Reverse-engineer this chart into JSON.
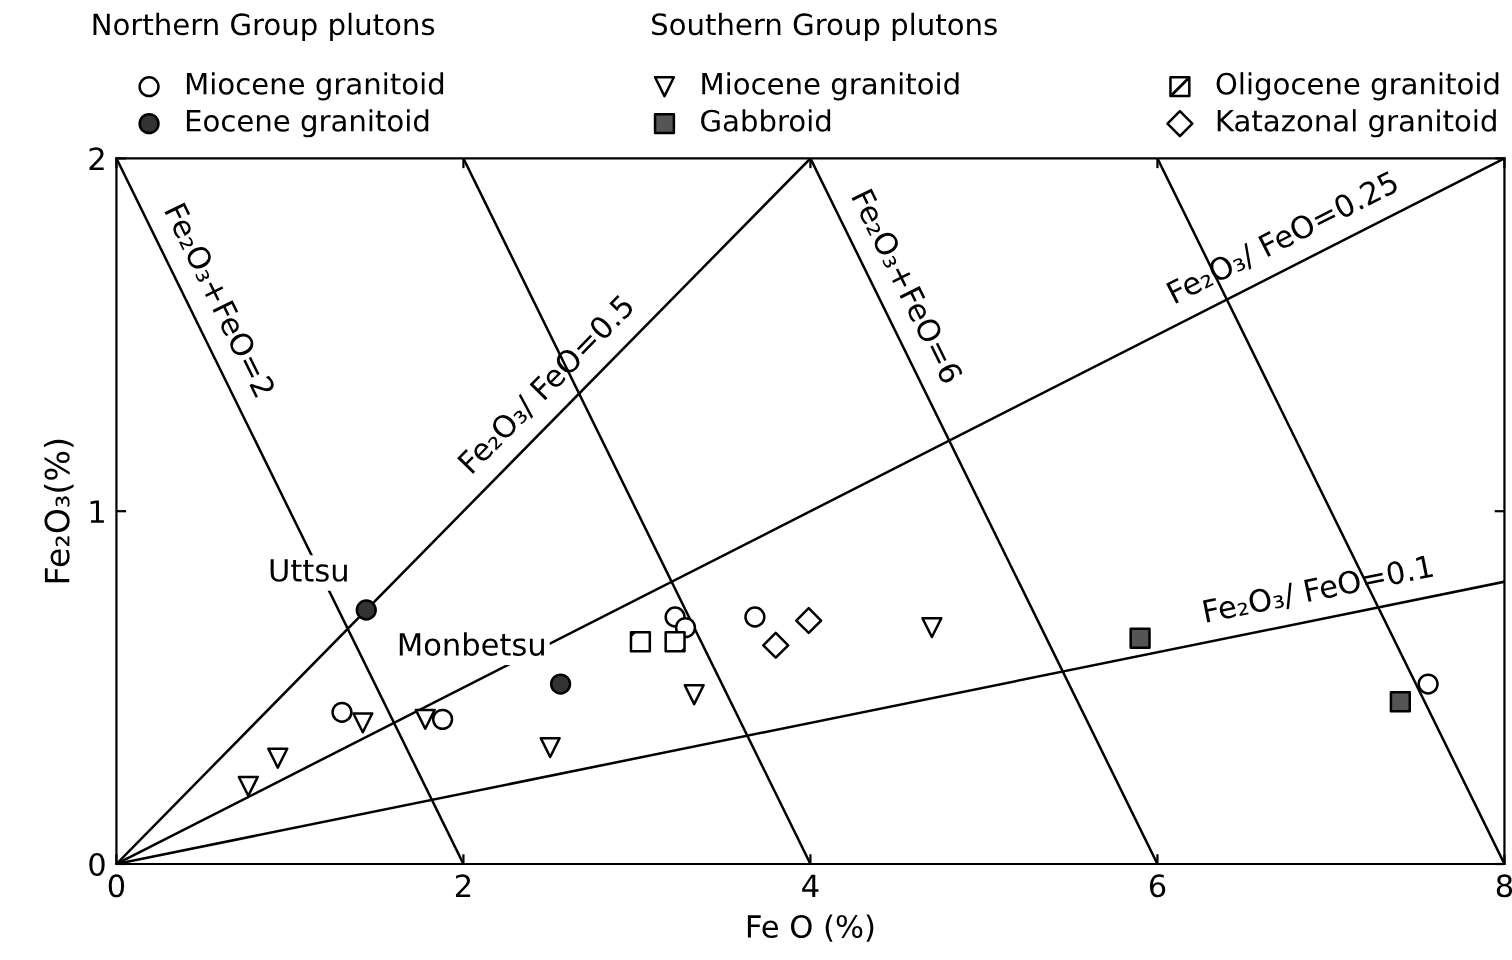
{
  "chart_data": {
    "type": "scatter",
    "xlabel": "Fe O (%)",
    "ylabel": "Fe₂O₃(%)",
    "xlim": [
      0,
      8
    ],
    "ylim": [
      0,
      2
    ],
    "xticks": [
      0,
      2,
      4,
      6,
      8
    ],
    "yticks": [
      0,
      1,
      2
    ],
    "grid": false,
    "legend": "top",
    "annotations": [
      "Northern Group plutons",
      "Southern Group plutons",
      {
        "text": "Uttsu",
        "x": 1.44,
        "y": 0.72
      },
      {
        "text": "Monbetsu",
        "x": 2.56,
        "y": 0.51
      }
    ],
    "series": [
      {
        "name": "Miocene granitoid",
        "color": "#000000",
        "marker": "circle",
        "x": [
          1.3,
          1.88,
          3.22,
          3.28,
          3.68,
          7.56
        ],
        "values": [
          0.43,
          0.41,
          0.7,
          0.67,
          0.7,
          0.51
        ]
      },
      {
        "name": "Eocene granitoid",
        "color": "#333333",
        "marker": "circle",
        "x": [
          1.44,
          2.56
        ],
        "values": [
          0.72,
          0.51
        ]
      },
      {
        "name": "Miocene granitoid",
        "color": "#000000",
        "marker": "triangle",
        "x": [
          0.76,
          0.93,
          1.42,
          1.78,
          2.5,
          3.33,
          4.7
        ],
        "values": [
          0.22,
          0.3,
          0.4,
          0.41,
          0.33,
          0.48,
          0.67
        ]
      },
      {
        "name": "Gabbroid",
        "color": "#555555",
        "marker": "square",
        "x": [
          5.9,
          7.4
        ],
        "values": [
          0.64,
          0.46
        ]
      },
      {
        "name": "Oligocene granitoid",
        "color": "#000000",
        "marker": "square",
        "x": [
          3.02,
          3.22
        ],
        "values": [
          0.63,
          0.63
        ]
      },
      {
        "name": "Katazonal granitoid",
        "color": "#000000",
        "marker": "diamond",
        "x": [
          3.8,
          3.99
        ],
        "values": [
          0.62,
          0.69
        ]
      },
      {
        "type": "line",
        "name": "Fe₂O₃/ FeO=0.5",
        "color": "#000000",
        "x": [
          0,
          4
        ],
        "values": [
          0,
          2
        ]
      },
      {
        "type": "line",
        "name": "Fe₂O₃/ FeO=0.25",
        "color": "#000000",
        "x": [
          0,
          8
        ],
        "values": [
          0,
          2
        ]
      },
      {
        "type": "line",
        "name": "Fe₂O₃/ FeO=0.1",
        "color": "#000000",
        "x": [
          0,
          8
        ],
        "values": [
          0,
          0.8
        ]
      },
      {
        "type": "line",
        "name": "Fe₂O₃+FeO=2",
        "color": "#000000",
        "x": [
          0,
          2
        ],
        "values": [
          2,
          0
        ]
      },
      {
        "type": "line",
        "color": "#000000",
        "x": [
          2,
          4
        ],
        "values": [
          2,
          0
        ]
      },
      {
        "type": "line",
        "name": "Fe₂O₃+FeO=6",
        "color": "#000000",
        "x": [
          4,
          6
        ],
        "values": [
          2,
          0
        ]
      },
      {
        "type": "line",
        "color": "#000000",
        "x": [
          6,
          8
        ],
        "values": [
          2,
          0
        ]
      }
    ]
  }
}
